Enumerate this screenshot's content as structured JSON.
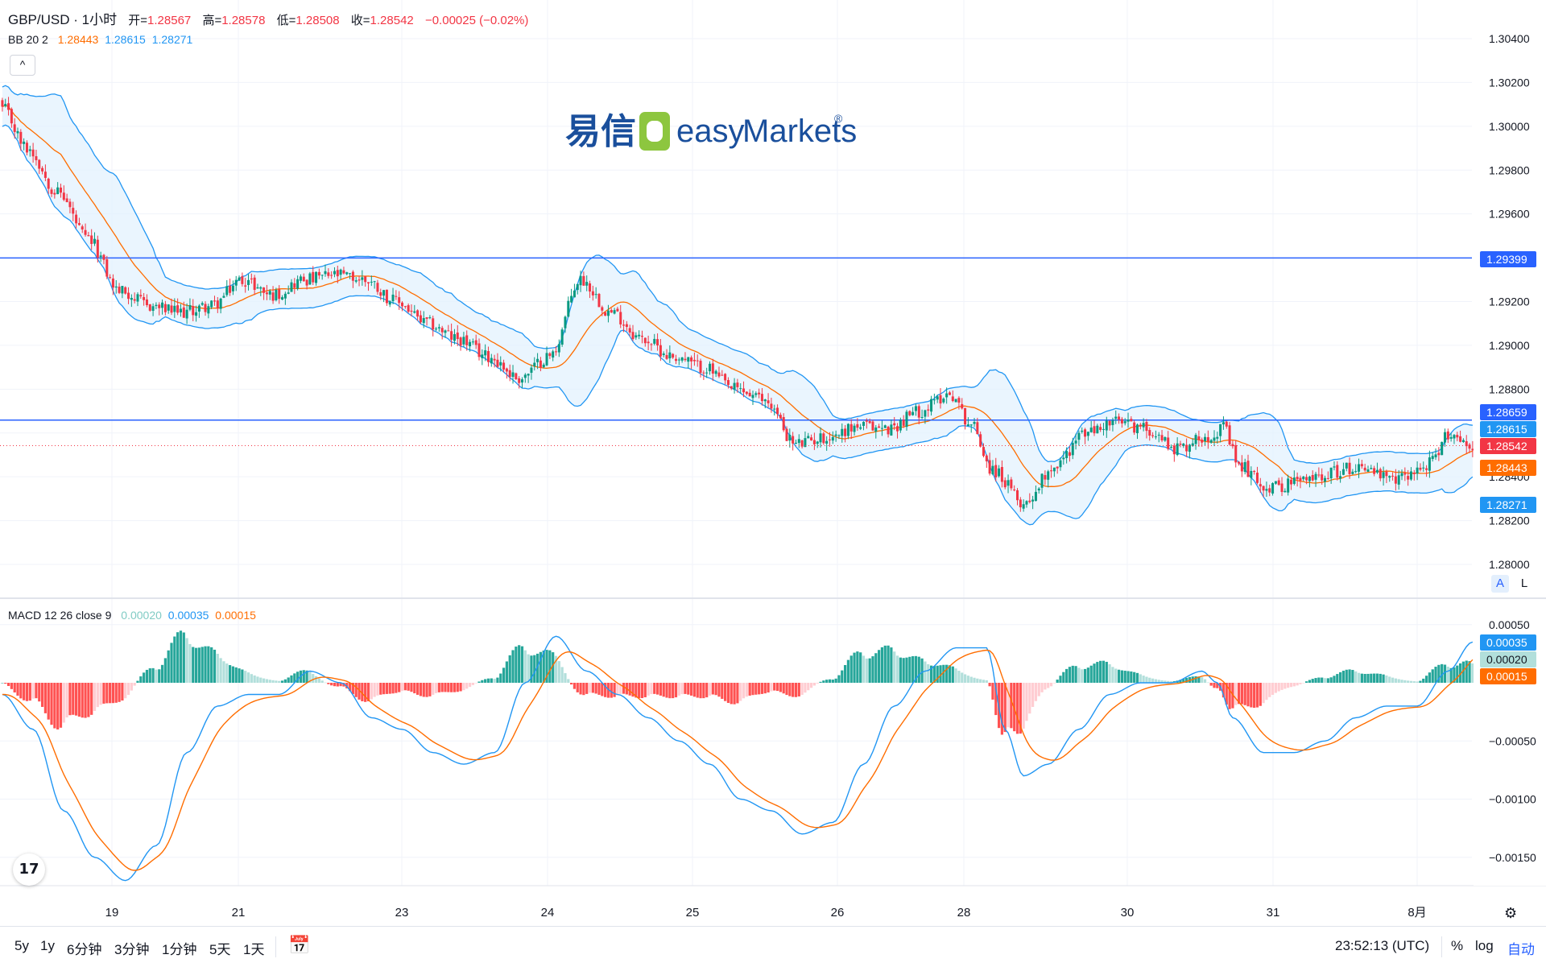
{
  "header": {
    "symbol": "GBP/USD · 1小时",
    "open_label": "开=",
    "open": "1.28567",
    "high_label": "高=",
    "high": "1.28578",
    "low_label": "低=",
    "low": "1.28508",
    "close_label": "收=",
    "close": "1.28542",
    "change": "−0.00025 (−0.02%)",
    "bb_label": "BB 20 2",
    "bb_basis": "1.28443",
    "bb_upper": "1.28615",
    "bb_lower": "1.28271",
    "macd_label": "MACD 12 26 close 9",
    "macd_hist": "0.00020",
    "macd_line": "0.00035",
    "macd_signal": "0.00015"
  },
  "watermark": {
    "cn": "易信",
    "en_prefix": "easy",
    "en_suffix": "Markets",
    "reg": "®"
  },
  "colors": {
    "up": "#089981",
    "down": "#f23645",
    "bb_line": "#2196f3",
    "bb_fill": "#e3f2fd",
    "basis": "#ff6d00",
    "hline": "#2962ff",
    "macd_line": "#2196f3",
    "signal": "#ff6d00",
    "hist_up_strong": "#26a69a",
    "hist_up_weak": "#b2dfdb",
    "hist_dn_strong": "#ff5252",
    "hist_dn_weak": "#ffcdd2"
  },
  "price_axis": {
    "ticks": [
      "1.30400",
      "1.30200",
      "1.30000",
      "1.29800",
      "1.29600",
      "1.29400",
      "1.29200",
      "1.29000",
      "1.28800",
      "1.28600",
      "1.28400",
      "1.28200",
      "1.28000"
    ],
    "labels": [
      {
        "value": 1.29399,
        "text": "1.29399",
        "color": "#2962ff"
      },
      {
        "value": 1.28659,
        "text": "1.28659",
        "color": "#2962ff"
      },
      {
        "value": 1.28615,
        "text": "1.28615",
        "color": "#2196f3"
      },
      {
        "value": 1.28542,
        "text": "1.28542",
        "color": "#f23645"
      },
      {
        "value": 1.28443,
        "text": "1.28443",
        "color": "#ff6d00"
      },
      {
        "value": 1.28271,
        "text": "1.28271",
        "color": "#2196f3"
      }
    ]
  },
  "macd_axis": {
    "ticks": [
      "0.00050",
      "−0.00050",
      "−0.00100",
      "−0.00150"
    ],
    "labels": [
      {
        "value": 0.00035,
        "text": "0.00035",
        "color": "#2196f3",
        "text_color": "#ffffff"
      },
      {
        "value": 0.0002,
        "text": "0.00020",
        "color": "#b2dfdb",
        "text_color": "#131722"
      },
      {
        "value": 0.00015,
        "text": "0.00015",
        "color": "#ff6d00",
        "text_color": "#ffffff"
      }
    ]
  },
  "time_axis": [
    "19",
    "21",
    "23",
    "24",
    "25",
    "26",
    "28",
    "30",
    "31",
    "8月"
  ],
  "toolbar": {
    "ranges": [
      "5y",
      "1y",
      "6分钟",
      "3分钟",
      "1分钟",
      "5天",
      "1天"
    ],
    "clock": "23:52:13 (UTC)",
    "percent": "%",
    "log": "log",
    "auto": "自动"
  },
  "buttons": {
    "collapse": "^",
    "auto_scale": "A",
    "lock": "L",
    "tv_logo": "17"
  },
  "chart_data": {
    "type": "candlestick",
    "symbol": "GBP/USD",
    "interval": "1小时",
    "hlines": [
      1.29399,
      1.28659
    ],
    "price_range": [
      1.2783,
      1.3055
    ],
    "macd_range": [
      -0.00178,
      0.00069
    ],
    "x_labels": [
      "19",
      "21",
      "23",
      "24",
      "25",
      "26",
      "28",
      "30",
      "31",
      "8月"
    ],
    "price_anchors": [
      [
        0,
        1.3008
      ],
      [
        8,
        1.299
      ],
      [
        18,
        1.297
      ],
      [
        28,
        1.2948
      ],
      [
        38,
        1.2925
      ],
      [
        48,
        1.2918
      ],
      [
        58,
        1.2915
      ],
      [
        68,
        1.2918
      ],
      [
        78,
        1.293
      ],
      [
        88,
        1.2923
      ],
      [
        98,
        1.293
      ],
      [
        108,
        1.2932
      ],
      [
        118,
        1.293
      ],
      [
        128,
        1.292
      ],
      [
        138,
        1.291
      ],
      [
        148,
        1.2903
      ],
      [
        158,
        1.2895
      ],
      [
        168,
        1.2885
      ],
      [
        178,
        1.2895
      ],
      [
        188,
        1.293
      ],
      [
        198,
        1.2915
      ],
      [
        208,
        1.2903
      ],
      [
        218,
        1.2895
      ],
      [
        228,
        1.289
      ],
      [
        238,
        1.288
      ],
      [
        248,
        1.2875
      ],
      [
        258,
        1.2855
      ],
      [
        268,
        1.2858
      ],
      [
        278,
        1.2863
      ],
      [
        288,
        1.2862
      ],
      [
        298,
        1.287
      ],
      [
        308,
        1.2878
      ],
      [
        315,
        1.2864
      ],
      [
        322,
        1.2843
      ],
      [
        332,
        1.2828
      ],
      [
        342,
        1.2845
      ],
      [
        352,
        1.286
      ],
      [
        362,
        1.2865
      ],
      [
        372,
        1.2862
      ],
      [
        382,
        1.2853
      ],
      [
        392,
        1.2859
      ],
      [
        397,
        1.2862
      ],
      [
        402,
        1.2845
      ],
      [
        412,
        1.2835
      ],
      [
        422,
        1.2838
      ],
      [
        432,
        1.2842
      ],
      [
        442,
        1.2845
      ],
      [
        452,
        1.2838
      ],
      [
        460,
        1.2843
      ],
      [
        466,
        1.2848
      ],
      [
        470,
        1.286
      ],
      [
        478,
        1.2854
      ]
    ],
    "macd_anchors": [
      [
        0,
        -0.0001
      ],
      [
        10,
        -0.0004
      ],
      [
        20,
        -0.0011
      ],
      [
        30,
        -0.0015
      ],
      [
        40,
        -0.0017
      ],
      [
        50,
        -0.0014
      ],
      [
        60,
        -0.0006
      ],
      [
        70,
        -0.0002
      ],
      [
        80,
        -0.0001
      ],
      [
        90,
        -0.0001
      ],
      [
        100,
        0.0001
      ],
      [
        110,
        0.0
      ],
      [
        120,
        -0.0003
      ],
      [
        130,
        -0.0004
      ],
      [
        140,
        -0.0006
      ],
      [
        150,
        -0.0007
      ],
      [
        160,
        -0.0006
      ],
      [
        170,
        0.0
      ],
      [
        180,
        0.0004
      ],
      [
        190,
        0.0001
      ],
      [
        200,
        -0.0001
      ],
      [
        210,
        -0.0003
      ],
      [
        220,
        -0.0005
      ],
      [
        230,
        -0.0007
      ],
      [
        240,
        -0.001
      ],
      [
        250,
        -0.0011
      ],
      [
        260,
        -0.0013
      ],
      [
        270,
        -0.0012
      ],
      [
        280,
        -0.0007
      ],
      [
        290,
        -0.0002
      ],
      [
        300,
        0.0001
      ],
      [
        310,
        0.0003
      ],
      [
        320,
        0.0003
      ],
      [
        326,
        -0.0004
      ],
      [
        332,
        -0.0008
      ],
      [
        340,
        -0.0007
      ],
      [
        350,
        -0.0004
      ],
      [
        360,
        -0.0001
      ],
      [
        370,
        0.0
      ],
      [
        380,
        0.0
      ],
      [
        390,
        0.0001
      ],
      [
        395,
        0.0
      ],
      [
        400,
        -0.0003
      ],
      [
        410,
        -0.0006
      ],
      [
        420,
        -0.0006
      ],
      [
        430,
        -0.0005
      ],
      [
        440,
        -0.0003
      ],
      [
        450,
        -0.0002
      ],
      [
        460,
        -0.0002
      ],
      [
        470,
        0.0001
      ],
      [
        478,
        0.00035
      ]
    ]
  }
}
